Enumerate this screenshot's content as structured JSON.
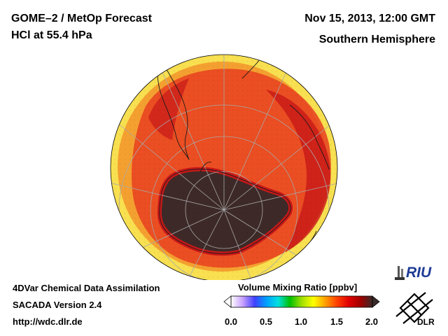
{
  "header": {
    "title_line1": "GOME–2 / MetOp Forecast",
    "title_line2": "HCl at 55.4 hPa",
    "date": "Nov 15, 2013, 12:00 GMT",
    "region": "Southern Hemisphere"
  },
  "footer": {
    "line1": "4DVar Chemical Data Assimilation",
    "line2": "SACADA Version 2.4",
    "line3": "http://wdc.dlr.de"
  },
  "colorbar": {
    "title": "Volume Mixing Ratio [ppbv]",
    "ticks": [
      "0.0",
      "0.5",
      "1.0",
      "1.5",
      "2.0"
    ],
    "colors": [
      "#ffffff",
      "#c8a0ff",
      "#4040ff",
      "#00a0ff",
      "#00e0e0",
      "#00c000",
      "#a0e000",
      "#ffff00",
      "#ffa000",
      "#ff4000",
      "#e00000",
      "#a00000",
      "#3a2a2a"
    ]
  },
  "logos": {
    "riu": "RIU",
    "dlr": "DLR"
  },
  "map": {
    "projection": "orthographic, south pole centred",
    "colors": {
      "outer_rim": "#f8e050",
      "background_field": "#f4a030",
      "high_band": "#e84020",
      "peak_band": "#c81818",
      "polar_vortex": "#3d2a28"
    }
  }
}
